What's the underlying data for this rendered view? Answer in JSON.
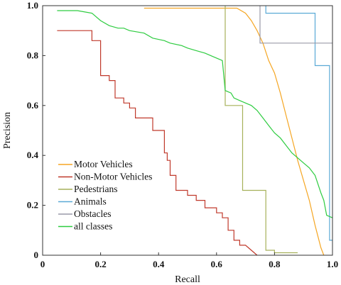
{
  "chart_data": {
    "type": "line",
    "title": "",
    "xlabel": "Recall",
    "ylabel": "Precision",
    "xlim": [
      0,
      1
    ],
    "ylim": [
      0,
      1
    ],
    "grid": false,
    "legend_position": "bottom-left",
    "x_ticks": [
      {
        "value": 0,
        "label": "0"
      },
      {
        "value": 0.2,
        "label": "0.2"
      },
      {
        "value": 0.4,
        "label": "0.4"
      },
      {
        "value": 0.6,
        "label": "0.6"
      },
      {
        "value": 0.8,
        "label": "0.8"
      },
      {
        "value": 1,
        "label": "1.0"
      }
    ],
    "y_ticks": [
      {
        "value": 0,
        "label": "0"
      },
      {
        "value": 0.2,
        "label": "0.2"
      },
      {
        "value": 0.4,
        "label": "0.4"
      },
      {
        "value": 0.6,
        "label": "0.6"
      },
      {
        "value": 0.8,
        "label": "0.8"
      },
      {
        "value": 1,
        "label": "1.0"
      }
    ],
    "series": [
      {
        "name": "Motor Vehicles",
        "color": "#f5a623",
        "points": [
          [
            0.35,
            0.99
          ],
          [
            0.5,
            0.99
          ],
          [
            0.6,
            0.99
          ],
          [
            0.67,
            0.99
          ],
          [
            0.7,
            0.97
          ],
          [
            0.72,
            0.94
          ],
          [
            0.74,
            0.9
          ],
          [
            0.76,
            0.85
          ],
          [
            0.78,
            0.78
          ],
          [
            0.8,
            0.73
          ],
          [
            0.82,
            0.65
          ],
          [
            0.84,
            0.56
          ],
          [
            0.86,
            0.47
          ],
          [
            0.88,
            0.38
          ],
          [
            0.9,
            0.3
          ],
          [
            0.92,
            0.22
          ],
          [
            0.94,
            0.12
          ],
          [
            0.96,
            0.03
          ],
          [
            0.97,
            0.0
          ]
        ]
      },
      {
        "name": "Non-Motor Vehicles",
        "color": "#c0392b",
        "points": [
          [
            0.05,
            0.9
          ],
          [
            0.05,
            0.9
          ],
          [
            0.17,
            0.9
          ],
          [
            0.17,
            0.86
          ],
          [
            0.2,
            0.86
          ],
          [
            0.2,
            0.72
          ],
          [
            0.23,
            0.72
          ],
          [
            0.23,
            0.7
          ],
          [
            0.25,
            0.7
          ],
          [
            0.25,
            0.63
          ],
          [
            0.28,
            0.63
          ],
          [
            0.28,
            0.61
          ],
          [
            0.3,
            0.61
          ],
          [
            0.3,
            0.59
          ],
          [
            0.32,
            0.59
          ],
          [
            0.32,
            0.55
          ],
          [
            0.38,
            0.55
          ],
          [
            0.38,
            0.5
          ],
          [
            0.42,
            0.5
          ],
          [
            0.42,
            0.41
          ],
          [
            0.43,
            0.41
          ],
          [
            0.43,
            0.38
          ],
          [
            0.44,
            0.38
          ],
          [
            0.44,
            0.32
          ],
          [
            0.46,
            0.32
          ],
          [
            0.46,
            0.26
          ],
          [
            0.5,
            0.26
          ],
          [
            0.5,
            0.24
          ],
          [
            0.53,
            0.24
          ],
          [
            0.53,
            0.22
          ],
          [
            0.56,
            0.22
          ],
          [
            0.56,
            0.19
          ],
          [
            0.6,
            0.19
          ],
          [
            0.6,
            0.17
          ],
          [
            0.62,
            0.17
          ],
          [
            0.62,
            0.15
          ],
          [
            0.64,
            0.15
          ],
          [
            0.64,
            0.1
          ],
          [
            0.66,
            0.1
          ],
          [
            0.66,
            0.06
          ],
          [
            0.68,
            0.06
          ],
          [
            0.68,
            0.04
          ],
          [
            0.7,
            0.04
          ],
          [
            0.72,
            0.02
          ],
          [
            0.74,
            0.0
          ]
        ]
      },
      {
        "name": "Pedestrians",
        "color": "#a6b15a",
        "points": [
          [
            0.63,
            1.0
          ],
          [
            0.63,
            0.6
          ],
          [
            0.69,
            0.6
          ],
          [
            0.69,
            0.26
          ],
          [
            0.77,
            0.26
          ],
          [
            0.77,
            0.02
          ],
          [
            0.8,
            0.02
          ],
          [
            0.8,
            0.01
          ],
          [
            0.88,
            0.01
          ]
        ]
      },
      {
        "name": "Animals",
        "color": "#5aa9d6",
        "points": [
          [
            0.77,
            1.0
          ],
          [
            0.77,
            0.97
          ],
          [
            0.94,
            0.97
          ],
          [
            0.94,
            0.76
          ],
          [
            0.99,
            0.76
          ],
          [
            0.99,
            0.06
          ],
          [
            1.0,
            0.06
          ]
        ]
      },
      {
        "name": "Obstacles",
        "color": "#9a9aa8",
        "points": [
          [
            0.75,
            1.0
          ],
          [
            0.75,
            0.85
          ],
          [
            1.0,
            0.85
          ]
        ]
      },
      {
        "name": "all classes",
        "color": "#2ecc40",
        "points": [
          [
            0.05,
            0.98
          ],
          [
            0.08,
            0.98
          ],
          [
            0.12,
            0.98
          ],
          [
            0.17,
            0.97
          ],
          [
            0.2,
            0.94
          ],
          [
            0.23,
            0.92
          ],
          [
            0.26,
            0.91
          ],
          [
            0.28,
            0.91
          ],
          [
            0.3,
            0.9
          ],
          [
            0.35,
            0.89
          ],
          [
            0.38,
            0.87
          ],
          [
            0.42,
            0.86
          ],
          [
            0.44,
            0.85
          ],
          [
            0.48,
            0.84
          ],
          [
            0.5,
            0.83
          ],
          [
            0.53,
            0.82
          ],
          [
            0.56,
            0.81
          ],
          [
            0.58,
            0.8
          ],
          [
            0.6,
            0.79
          ],
          [
            0.62,
            0.78
          ],
          [
            0.63,
            0.66
          ],
          [
            0.65,
            0.65
          ],
          [
            0.66,
            0.63
          ],
          [
            0.68,
            0.62
          ],
          [
            0.7,
            0.61
          ],
          [
            0.72,
            0.6
          ],
          [
            0.74,
            0.58
          ],
          [
            0.76,
            0.55
          ],
          [
            0.78,
            0.52
          ],
          [
            0.8,
            0.49
          ],
          [
            0.82,
            0.47
          ],
          [
            0.84,
            0.44
          ],
          [
            0.86,
            0.41
          ],
          [
            0.88,
            0.39
          ],
          [
            0.9,
            0.37
          ],
          [
            0.92,
            0.35
          ],
          [
            0.94,
            0.32
          ],
          [
            0.96,
            0.25
          ],
          [
            0.97,
            0.22
          ],
          [
            0.98,
            0.16
          ],
          [
            1.0,
            0.15
          ]
        ]
      }
    ]
  }
}
